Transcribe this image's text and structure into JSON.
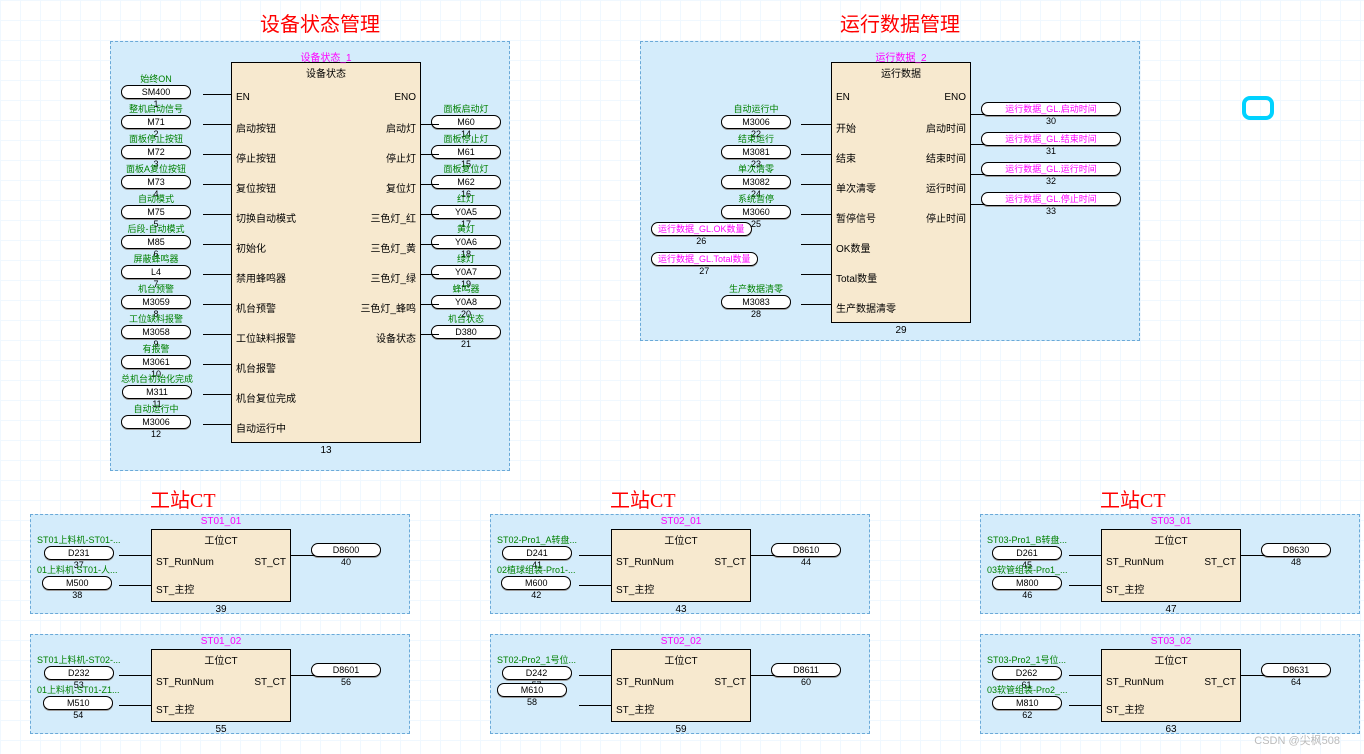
{
  "colors": {
    "title": "#ff0000",
    "instance_name": "#ff00ff",
    "tag_label": "#008000",
    "link_label": "#ff00ff",
    "region_bg": "#d4ecfb",
    "region_border": "#6aa9d8",
    "fb_bg": "#f7e9cf",
    "grid": "#f0f8ff",
    "float_btn": "#00d2ff"
  },
  "watermark": "CSDN @尖枫508",
  "sec1": {
    "title": "设备状态管理",
    "fb": {
      "name": "设备状态_1",
      "type": "设备状态",
      "idx": "13"
    },
    "left_ports": [
      "EN",
      "启动按钮",
      "停止按钮",
      "复位按钮",
      "切换自动模式",
      "初始化",
      "禁用蜂鸣器",
      "机台预警",
      "工位缺料报警",
      "机台报警",
      "机台复位完成",
      "自动运行中"
    ],
    "right_ports": [
      "ENO",
      "启动灯",
      "停止灯",
      "复位灯",
      "三色灯_红",
      "三色灯_黄",
      "三色灯_绿",
      "三色灯_蜂鸣",
      "设备状态"
    ],
    "left_tags": [
      {
        "label": "始终ON",
        "pill": "SM400",
        "idx": "1"
      },
      {
        "label": "整机启动信号",
        "pill": "M71",
        "idx": "2"
      },
      {
        "label": "面板停止按钮",
        "pill": "M72",
        "idx": "3"
      },
      {
        "label": "面板A复位按钮",
        "pill": "M73",
        "idx": "4"
      },
      {
        "label": "自动模式",
        "pill": "M75",
        "idx": "5"
      },
      {
        "label": "后段-自动模式",
        "pill": "M85",
        "idx": "6"
      },
      {
        "label": "屏蔽蜂鸣器",
        "pill": "L4",
        "idx": "7"
      },
      {
        "label": "机台预警",
        "pill": "M3059",
        "idx": "8"
      },
      {
        "label": "工位缺料报警",
        "pill": "M3058",
        "idx": "9"
      },
      {
        "label": "有报警",
        "pill": "M3061",
        "idx": "10"
      },
      {
        "label": "总机台初始化完成",
        "pill": "M311",
        "idx": "11"
      },
      {
        "label": "自动运行中",
        "pill": "M3006",
        "idx": "12"
      }
    ],
    "right_tags": [
      {
        "label": "面板启动灯",
        "pill": "M60",
        "idx": "14"
      },
      {
        "label": "面板停止灯",
        "pill": "M61",
        "idx": "15"
      },
      {
        "label": "面板复位灯",
        "pill": "M62",
        "idx": "16"
      },
      {
        "label": "红灯",
        "pill": "Y0A5",
        "idx": "17"
      },
      {
        "label": "黄灯",
        "pill": "Y0A6",
        "idx": "18"
      },
      {
        "label": "绿灯",
        "pill": "Y0A7",
        "idx": "19"
      },
      {
        "label": "蜂鸣器",
        "pill": "Y0A8",
        "idx": "20"
      },
      {
        "label": "机台状态",
        "pill": "D380",
        "idx": "21"
      }
    ]
  },
  "sec2": {
    "title": "运行数据管理",
    "fb": {
      "name": "运行数据_2",
      "type": "运行数据",
      "idx": "29"
    },
    "left_ports": [
      "EN",
      "开始",
      "结束",
      "单次清零",
      "暂停信号",
      "OK数量",
      "Total数量",
      "生产数据清零"
    ],
    "right_ports": [
      "ENO",
      "启动时间",
      "结束时间",
      "运行时间",
      "停止时间"
    ],
    "left_tags": [
      {
        "label": "自动运行中",
        "pill": "M3006",
        "idx": "22"
      },
      {
        "label": "结束运行",
        "pill": "M3081",
        "idx": "23"
      },
      {
        "label": "单次清零",
        "pill": "M3082",
        "idx": "24"
      },
      {
        "label": "系统暂停",
        "pill": "M3060",
        "idx": "25"
      },
      {
        "label": "",
        "pill": "运行数据_GL.OK数量",
        "idx": "26",
        "magenta": true
      },
      {
        "label": "",
        "pill": "运行数据_GL.Total数量",
        "idx": "27",
        "magenta": true
      },
      {
        "label": "生产数据清零",
        "pill": "M3083",
        "idx": "28"
      }
    ],
    "right_tags": [
      {
        "label": "",
        "pill": "运行数据_GL.启动时间",
        "idx": "30",
        "magenta": true
      },
      {
        "label": "",
        "pill": "运行数据_GL.结束时间",
        "idx": "31",
        "magenta": true
      },
      {
        "label": "",
        "pill": "运行数据_GL.运行时间",
        "idx": "32",
        "magenta": true
      },
      {
        "label": "",
        "pill": "运行数据_GL.停止时间",
        "idx": "33",
        "magenta": true
      }
    ]
  },
  "ct_blocks": [
    {
      "title": "工站CT",
      "col": 0,
      "items": [
        {
          "name": "ST01_01",
          "idx": "39",
          "out": {
            "pill": "D8600",
            "idx": "40"
          },
          "ins": [
            {
              "label": "ST01上料机-ST01-...",
              "pill": "D231",
              "idx": "37"
            },
            {
              "label": "01上料机 ST01-人...",
              "pill": "M500",
              "idx": "38"
            }
          ]
        },
        {
          "name": "ST01_02",
          "idx": "55",
          "out": {
            "pill": "D8601",
            "idx": "56"
          },
          "ins": [
            {
              "label": "ST01上料机-ST02-...",
              "pill": "D232",
              "idx": "53"
            },
            {
              "label": "01上料机-ST01-Z1...",
              "pill": "M510",
              "idx": "54"
            }
          ]
        }
      ]
    },
    {
      "title": "工站CT",
      "col": 1,
      "items": [
        {
          "name": "ST02_01",
          "idx": "43",
          "out": {
            "pill": "D8610",
            "idx": "44"
          },
          "ins": [
            {
              "label": "ST02-Pro1_A转盘...",
              "pill": "D241",
              "idx": "41"
            },
            {
              "label": "02植球组装-Pro1-...",
              "pill": "M600",
              "idx": "42"
            }
          ]
        },
        {
          "name": "ST02_02",
          "idx": "59",
          "out": {
            "pill": "D8611",
            "idx": "60"
          },
          "ins": [
            {
              "label": "ST02-Pro2_1号位...",
              "pill": "D242",
              "idx": "57"
            },
            {
              "label": "",
              "pill": "M610",
              "idx": "58"
            }
          ]
        }
      ]
    },
    {
      "title": "工站CT",
      "col": 2,
      "items": [
        {
          "name": "ST03_01",
          "idx": "47",
          "out": {
            "pill": "D8630",
            "idx": "48"
          },
          "ins": [
            {
              "label": "ST03-Pro1_B转盘...",
              "pill": "D261",
              "idx": "45"
            },
            {
              "label": "03软管组装-Pro1_...",
              "pill": "M800",
              "idx": "46"
            }
          ]
        },
        {
          "name": "ST03_02",
          "idx": "63",
          "out": {
            "pill": "D8631",
            "idx": "64"
          },
          "ins": [
            {
              "label": "ST03-Pro2_1号位...",
              "pill": "D262",
              "idx": "61"
            },
            {
              "label": "03软管组装-Pro2_...",
              "pill": "M810",
              "idx": "62"
            }
          ]
        }
      ]
    }
  ],
  "ct_fb_type": "工位CT",
  "ct_ports_left": [
    "ST_RunNum",
    "ST_主控"
  ],
  "ct_port_right": "ST_CT"
}
